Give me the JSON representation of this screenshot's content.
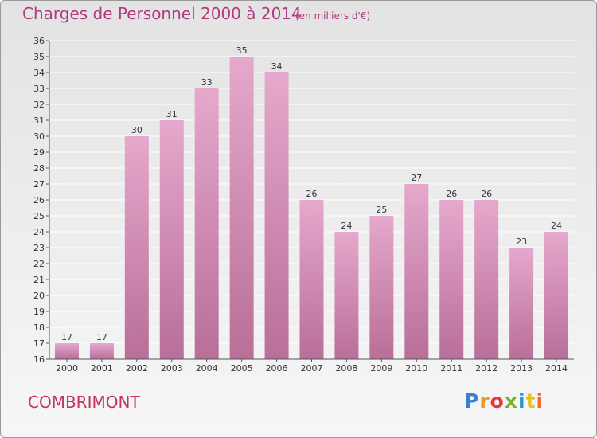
{
  "chart_data": {
    "type": "bar",
    "title": "Charges de Personnel 2000 à 2014",
    "subtitle": "(en milliers d'€)",
    "categories": [
      "2000",
      "2001",
      "2002",
      "2003",
      "2004",
      "2005",
      "2006",
      "2007",
      "2008",
      "2009",
      "2010",
      "2011",
      "2012",
      "2013",
      "2014"
    ],
    "values": [
      17,
      17,
      30,
      31,
      33,
      35,
      34,
      26,
      24,
      25,
      27,
      26,
      26,
      23,
      24
    ],
    "ylim": [
      16,
      36
    ],
    "yticks": [
      16,
      17,
      18,
      19,
      20,
      21,
      22,
      23,
      24,
      25,
      26,
      27,
      28,
      29,
      30,
      31,
      32,
      33,
      34,
      35,
      36
    ],
    "grid": true,
    "colors": {
      "bar_top": "#e6a8cc",
      "bar_bottom": "#b86f98",
      "grid": "#ffffff"
    }
  },
  "footer": {
    "commune": "COMBRIMONT",
    "logo": "Proxiti"
  }
}
